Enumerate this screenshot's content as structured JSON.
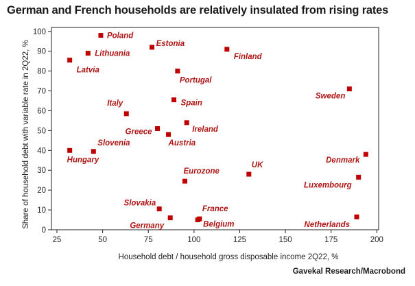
{
  "title": "German and French households are relatively insulated from rising rates",
  "source": "Gavekal Research/Macrobond",
  "colors": {
    "marker": "#c00000",
    "label": "#b01515",
    "axis": "#222222"
  },
  "chart_data": {
    "type": "scatter",
    "xlabel": "Household debt / household gross disposable income 2Q22, %",
    "ylabel": "Share of household debt with variable rate in 2Q22, %",
    "xlim": [
      22,
      201
    ],
    "ylim": [
      0,
      102
    ],
    "xticks": [
      25,
      50,
      75,
      100,
      125,
      150,
      175,
      200
    ],
    "yticks": [
      0,
      10,
      20,
      30,
      40,
      50,
      60,
      70,
      80,
      90,
      100
    ],
    "grid": false,
    "points": [
      {
        "label": "Poland",
        "x": 49,
        "y": 98
      },
      {
        "label": "Estonia",
        "x": 77,
        "y": 92
      },
      {
        "label": "Lithuania",
        "x": 42,
        "y": 89
      },
      {
        "label": "Latvia",
        "x": 32,
        "y": 85.5
      },
      {
        "label": "Finland",
        "x": 118,
        "y": 91
      },
      {
        "label": "Portugal",
        "x": 91,
        "y": 80
      },
      {
        "label": "Sweden",
        "x": 185,
        "y": 71
      },
      {
        "label": "Spain",
        "x": 89,
        "y": 65.5
      },
      {
        "label": "Italy",
        "x": 63,
        "y": 58.5
      },
      {
        "label": "Ireland",
        "x": 96,
        "y": 54
      },
      {
        "label": "Greece",
        "x": 80,
        "y": 51
      },
      {
        "label": "Austria",
        "x": 86,
        "y": 48
      },
      {
        "label": "Slovenia",
        "x": 45,
        "y": 39.5
      },
      {
        "label": "Hungary",
        "x": 32,
        "y": 40
      },
      {
        "label": "Denmark",
        "x": 194,
        "y": 38
      },
      {
        "label": "UK",
        "x": 130,
        "y": 28
      },
      {
        "label": "Luxembourg",
        "x": 190,
        "y": 26.5
      },
      {
        "label": "Eurozone",
        "x": 95,
        "y": 24.5
      },
      {
        "label": "Slovakia",
        "x": 81,
        "y": 10.5
      },
      {
        "label": "France",
        "x": 103,
        "y": 5.5
      },
      {
        "label": "Germany",
        "x": 87,
        "y": 6
      },
      {
        "label": "Belgium",
        "x": 102,
        "y": 5
      },
      {
        "label": "Netherlands",
        "x": 189,
        "y": 6.5
      }
    ]
  }
}
